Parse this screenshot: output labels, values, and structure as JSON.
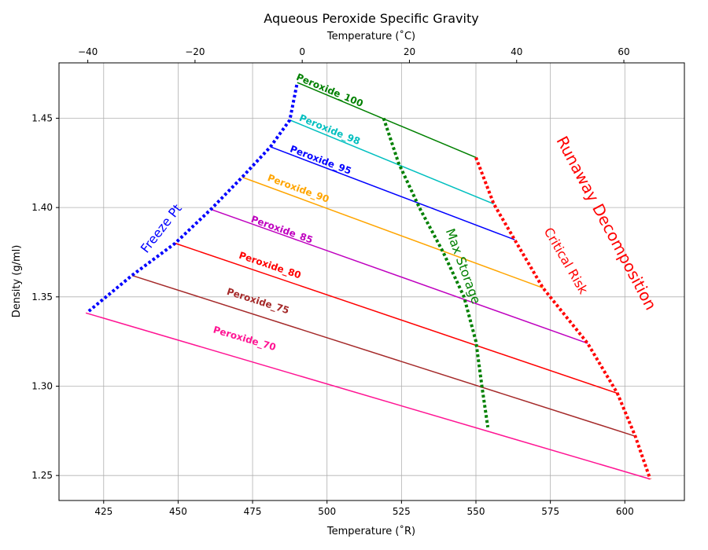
{
  "chart_data": {
    "type": "line",
    "title": "Aqueous Peroxide Specific Gravity",
    "xlabel": "Temperature (˚R)",
    "x2label": "Temperature (˚C)",
    "ylabel": "Density (g/ml)",
    "xlim": [
      410,
      620
    ],
    "ylim": [
      1.236,
      1.481
    ],
    "x_ticks": [
      425,
      450,
      475,
      500,
      525,
      550,
      575,
      600
    ],
    "x2_ticks": [
      -40,
      -20,
      0,
      20,
      40,
      60
    ],
    "y_ticks": [
      1.25,
      1.3,
      1.35,
      1.4,
      1.45
    ],
    "grid": true,
    "series": [
      {
        "name": "Peroxide_100",
        "color": "#008000",
        "x": [
          490.0,
          550.0
        ],
        "y": [
          1.47,
          1.428
        ],
        "label_at": [
          500.5,
          1.464
        ]
      },
      {
        "name": "Peroxide_98",
        "color": "#00bfbf",
        "x": [
          487.5,
          556.0
        ],
        "y": [
          1.449,
          1.402
        ],
        "label_at": [
          500.5,
          1.442
        ]
      },
      {
        "name": "Peroxide_95",
        "color": "#0000ff",
        "x": [
          481.0,
          563.0
        ],
        "y": [
          1.434,
          1.382
        ],
        "label_at": [
          497.5,
          1.425
        ]
      },
      {
        "name": "Peroxide_90",
        "color": "#ffa500",
        "x": [
          471.5,
          572.5
        ],
        "y": [
          1.417,
          1.355
        ],
        "label_at": [
          490.0,
          1.409
        ]
      },
      {
        "name": "Peroxide_85",
        "color": "#bf00bf",
        "x": [
          461.0,
          587.5
        ],
        "y": [
          1.399,
          1.324
        ],
        "label_at": [
          484.5,
          1.386
        ]
      },
      {
        "name": "Peroxide_80",
        "color": "#ff0000",
        "x": [
          449.0,
          597.5
        ],
        "y": [
          1.38,
          1.296
        ],
        "label_at": [
          480.5,
          1.366
        ]
      },
      {
        "name": "Peroxide_75",
        "color": "#a52a2a",
        "x": [
          434.5,
          603.5
        ],
        "y": [
          1.362,
          1.272
        ],
        "label_at": [
          476.5,
          1.346
        ]
      },
      {
        "name": "Peroxide_70",
        "color": "#ff1493",
        "x": [
          419.0,
          608.5
        ],
        "y": [
          1.341,
          1.248
        ],
        "label_at": [
          472.0,
          1.325
        ]
      }
    ],
    "boundaries": [
      {
        "name": "Freeze Pt",
        "color": "#0000ff",
        "x": [
          420,
          434.5,
          449,
          461,
          471.5,
          481,
          487.5,
          490
        ],
        "y": [
          1.342,
          1.362,
          1.38,
          1.399,
          1.417,
          1.434,
          1.449,
          1.47
        ],
        "label_at": [
          444.5,
          1.388
        ],
        "label_rotation": -52,
        "label_size": 16
      },
      {
        "name": "Max Storage",
        "color": "#008000",
        "x": [
          519,
          524,
          531,
          539,
          546,
          550,
          552,
          554
        ],
        "y": [
          1.45,
          1.425,
          1.4,
          1.375,
          1.35,
          1.325,
          1.3,
          1.277
        ],
        "label_at": [
          545.5,
          1.367
        ],
        "label_rotation": 70,
        "label_size": 16
      },
      {
        "name": "Critical Risk",
        "color": "#ff0000",
        "x": [
          550,
          556,
          563,
          572.5,
          587.5,
          597.5,
          603.5,
          608.5
        ],
        "y": [
          1.428,
          1.402,
          1.382,
          1.355,
          1.324,
          1.296,
          1.272,
          1.248
        ],
        "label_at": [
          580.0,
          1.37
        ],
        "label_rotation": 60,
        "label_size": 16
      },
      {
        "name": "Runaway Decomposition",
        "color": "#ff0000",
        "x": [],
        "y": [],
        "label_at": [
          593.5,
          1.391
        ],
        "label_rotation": 62,
        "label_size": 20
      }
    ]
  }
}
